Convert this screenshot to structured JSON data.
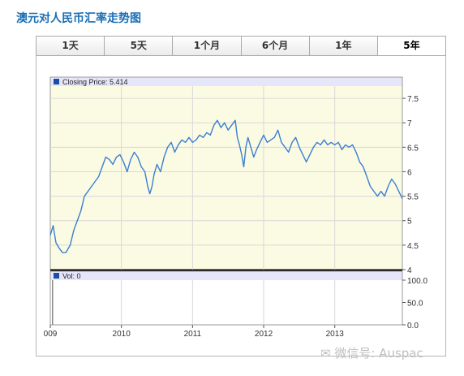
{
  "page": {
    "title": "澳元对人民币汇率走势图",
    "watermark": "微信号: Auspac"
  },
  "tabs": [
    {
      "label": "1天",
      "active": false
    },
    {
      "label": "5天",
      "active": false
    },
    {
      "label": "1个月",
      "active": false
    },
    {
      "label": "6个月",
      "active": false
    },
    {
      "label": "1年",
      "active": false
    },
    {
      "label": "5年",
      "active": true
    }
  ],
  "colors": {
    "title": "#1a6fb5",
    "line": "#3a7fd0",
    "price_bg": "#fbfbe4",
    "header_strip": "#e6e6fb",
    "legend_square": "#1c4ea8"
  },
  "chart_data": [
    {
      "type": "line",
      "legend": "Closing Price: 5.414",
      "ylim": [
        4,
        7.75
      ],
      "yticks": [
        "7.5",
        "7",
        "6.5",
        "6",
        "5.5",
        "5",
        "4.5",
        "4"
      ],
      "xticks": [
        "009",
        "2010",
        "2011",
        "2012",
        "2013"
      ],
      "xlim": [
        2009.0,
        2013.95
      ],
      "grid": true,
      "x": [
        2009.0,
        2009.04,
        2009.08,
        2009.12,
        2009.17,
        2009.22,
        2009.28,
        2009.33,
        2009.38,
        2009.43,
        2009.48,
        2009.53,
        2009.58,
        2009.63,
        2009.68,
        2009.73,
        2009.78,
        2009.83,
        2009.88,
        2009.93,
        2009.98,
        2010.03,
        2010.08,
        2010.13,
        2010.18,
        2010.23,
        2010.28,
        2010.33,
        2010.37,
        2010.4,
        2010.43,
        2010.46,
        2010.5,
        2010.55,
        2010.6,
        2010.65,
        2010.7,
        2010.75,
        2010.8,
        2010.85,
        2010.9,
        2010.95,
        2011.0,
        2011.05,
        2011.1,
        2011.15,
        2011.2,
        2011.25,
        2011.3,
        2011.35,
        2011.4,
        2011.45,
        2011.5,
        2011.55,
        2011.6,
        2011.63,
        2011.66,
        2011.69,
        2011.72,
        2011.75,
        2011.78,
        2011.82,
        2011.86,
        2011.9,
        2011.95,
        2012.0,
        2012.05,
        2012.1,
        2012.15,
        2012.2,
        2012.25,
        2012.3,
        2012.35,
        2012.4,
        2012.45,
        2012.5,
        2012.55,
        2012.6,
        2012.65,
        2012.7,
        2012.75,
        2012.8,
        2012.85,
        2012.9,
        2012.95,
        2013.0,
        2013.05,
        2013.1,
        2013.15,
        2013.2,
        2013.25,
        2013.3,
        2013.35,
        2013.4,
        2013.45,
        2013.5,
        2013.55,
        2013.6,
        2013.65,
        2013.7,
        2013.75,
        2013.8,
        2013.85,
        2013.9,
        2013.95
      ],
      "y": [
        4.7,
        4.9,
        4.55,
        4.45,
        4.35,
        4.35,
        4.5,
        4.8,
        5.0,
        5.2,
        5.5,
        5.6,
        5.7,
        5.8,
        5.9,
        6.1,
        6.3,
        6.25,
        6.15,
        6.3,
        6.35,
        6.2,
        6.0,
        6.25,
        6.4,
        6.3,
        6.1,
        6.0,
        5.7,
        5.55,
        5.7,
        5.95,
        6.15,
        6.0,
        6.3,
        6.5,
        6.6,
        6.4,
        6.55,
        6.65,
        6.6,
        6.7,
        6.6,
        6.65,
        6.75,
        6.7,
        6.8,
        6.75,
        6.95,
        7.05,
        6.9,
        7.0,
        6.85,
        6.95,
        7.05,
        6.7,
        6.55,
        6.35,
        6.1,
        6.5,
        6.7,
        6.5,
        6.3,
        6.45,
        6.6,
        6.75,
        6.6,
        6.65,
        6.7,
        6.85,
        6.6,
        6.5,
        6.4,
        6.6,
        6.7,
        6.5,
        6.35,
        6.2,
        6.35,
        6.5,
        6.6,
        6.55,
        6.65,
        6.55,
        6.6,
        6.55,
        6.6,
        6.45,
        6.55,
        6.5,
        6.55,
        6.4,
        6.2,
        6.1,
        5.9,
        5.7,
        5.6,
        5.5,
        5.6,
        5.5,
        5.7,
        5.85,
        5.75,
        5.6,
        5.45
      ]
    },
    {
      "type": "bar",
      "legend": "Vol: 0",
      "ylim": [
        0,
        100
      ],
      "yticks": [
        "100.0",
        "50.0",
        "0.0"
      ],
      "values": [
        0
      ]
    }
  ]
}
